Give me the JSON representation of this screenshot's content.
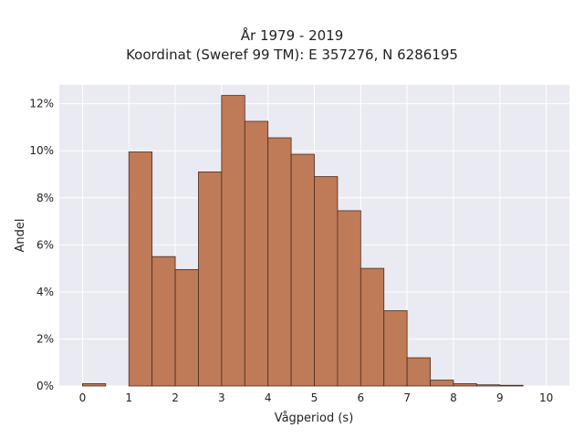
{
  "chart_data": {
    "type": "bar",
    "title": "År 1979 - 2019",
    "subtitle": "Koordinat (Sweref 99 TM): E 357276, N 6286195",
    "xlabel": "Vågperiod (s)",
    "ylabel": "Andel",
    "xlim": [
      -0.5,
      10.5
    ],
    "ylim": [
      0,
      12.8
    ],
    "x_ticks": [
      0,
      1,
      2,
      3,
      4,
      5,
      6,
      7,
      8,
      9,
      10
    ],
    "y_ticks": [
      0,
      2,
      4,
      6,
      8,
      10,
      12
    ],
    "y_tick_suffix": "%",
    "grid": true,
    "bin_width": 0.5,
    "bin_starts": [
      0,
      0.5,
      1,
      1.5,
      2,
      2.5,
      3,
      3.5,
      4,
      4.5,
      5,
      5.5,
      6,
      6.5,
      7,
      7.5,
      8,
      8.5,
      9,
      9.5
    ],
    "values": [
      0.1,
      0,
      9.95,
      5.5,
      4.95,
      9.1,
      12.35,
      11.25,
      10.55,
      9.85,
      8.9,
      7.45,
      5.0,
      3.2,
      1.2,
      0.25,
      0.1,
      0.05,
      0.03,
      0
    ],
    "colors": {
      "bar_fill": "#bf7a57",
      "bar_edge": "#4a2c1d",
      "plot_background": "#eaeaf2",
      "grid": "#ffffff"
    }
  }
}
